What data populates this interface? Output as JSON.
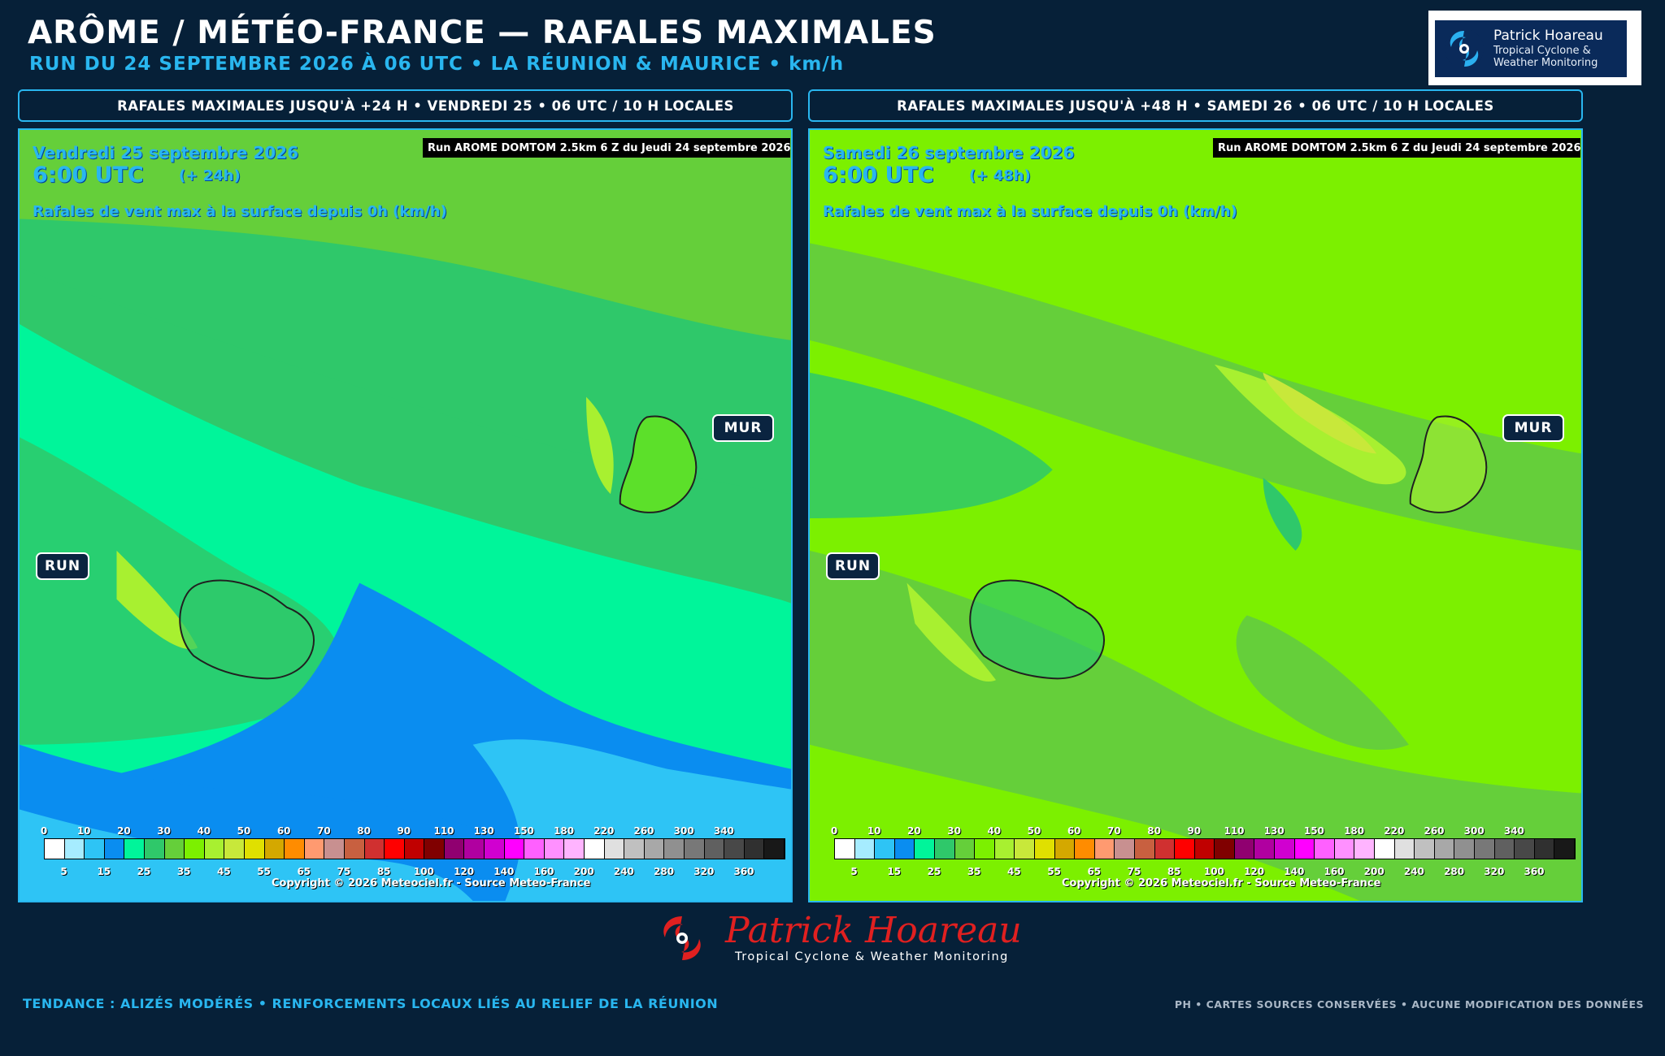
{
  "header": {
    "title": "ARÔME / MÉTÉO-FRANCE — RAFALES MAXIMALES",
    "subtitle": "RUN DU 24 SEPTEMBRE 2026 À 06 UTC • LA RÉUNION & MAURICE • km/h"
  },
  "logo": {
    "name": "Patrick Hoareau",
    "line1": "Tropical Cyclone &",
    "line2": "Weather Monitoring",
    "icon": "cyclone-icon"
  },
  "panels": [
    {
      "heading": "RAFALES MAXIMALES JUSQU'À +24 H • VENDREDI 25 • 06 UTC / 10 H LOCALES",
      "date": "Vendredi 25 septembre 2026",
      "time": "6:00 UTC",
      "lead": "(+ 24h)",
      "description": "Rafales de vent max à la surface depuis 0h (km/h)",
      "run_info": "Run AROME DOMTOM 2.5km 6 Z du Jeudi 24 septembre 2026",
      "labels": {
        "mauritius": "MUR",
        "reunion": "RUN"
      },
      "copyright": "Copyright © 2026 Meteociel.fr - Source Meteo-France"
    },
    {
      "heading": "RAFALES MAXIMALES JUSQU'À +48 H • SAMEDI 26 • 06 UTC / 10 H LOCALES",
      "date": "Samedi 26 septembre 2026",
      "time": "6:00 UTC",
      "lead": "(+ 48h)",
      "description": "Rafales de vent max à la surface depuis 0h (km/h)",
      "run_info": "Run AROME DOMTOM 2.5km 6 Z du Jeudi 24 septembre 2026",
      "labels": {
        "mauritius": "MUR",
        "reunion": "RUN"
      },
      "copyright": "Copyright © 2026 Meteociel.fr - Source Meteo-France"
    }
  ],
  "color_scale": {
    "top_ticks": [
      "0",
      "10",
      "20",
      "30",
      "40",
      "50",
      "60",
      "70",
      "80",
      "90",
      "110",
      "130",
      "150",
      "180",
      "220",
      "260",
      "300",
      "340"
    ],
    "bottom_ticks": [
      "5",
      "15",
      "25",
      "35",
      "45",
      "55",
      "65",
      "75",
      "85",
      "100",
      "120",
      "140",
      "160",
      "200",
      "240",
      "280",
      "320",
      "360"
    ],
    "colors": [
      "#ffffff",
      "#a6ecff",
      "#2ec4f5",
      "#0a8df0",
      "#00f59a",
      "#2fc86a",
      "#65cf3a",
      "#7cf000",
      "#a8f030",
      "#c8e83a",
      "#e0e000",
      "#d4a800",
      "#ff8c00",
      "#ff9a70",
      "#c89090",
      "#c86040",
      "#d03030",
      "#ff0000",
      "#c00000",
      "#800000",
      "#900070",
      "#b000a0",
      "#d000d0",
      "#ff00ff",
      "#ff60ff",
      "#ff90ff",
      "#ffb4ff",
      "#ffffff",
      "#e0e0e0",
      "#c0c0c0",
      "#a8a8a8",
      "#909090",
      "#787878",
      "#606060",
      "#484848",
      "#303030",
      "#181818"
    ]
  },
  "brand": {
    "name": "Patrick Hoareau",
    "tagline": "Tropical Cyclone & Weather Monitoring"
  },
  "footer": {
    "left": "TENDANCE : ALIZÉS MODÉRÉS • RENFORCEMENTS LOCAUX LIÉS AU RELIEF DE LA RÉUNION",
    "right": "PH • CARTES SOURCES CONSERVÉES • AUCUNE MODIFICATION DES DONNÉES"
  }
}
